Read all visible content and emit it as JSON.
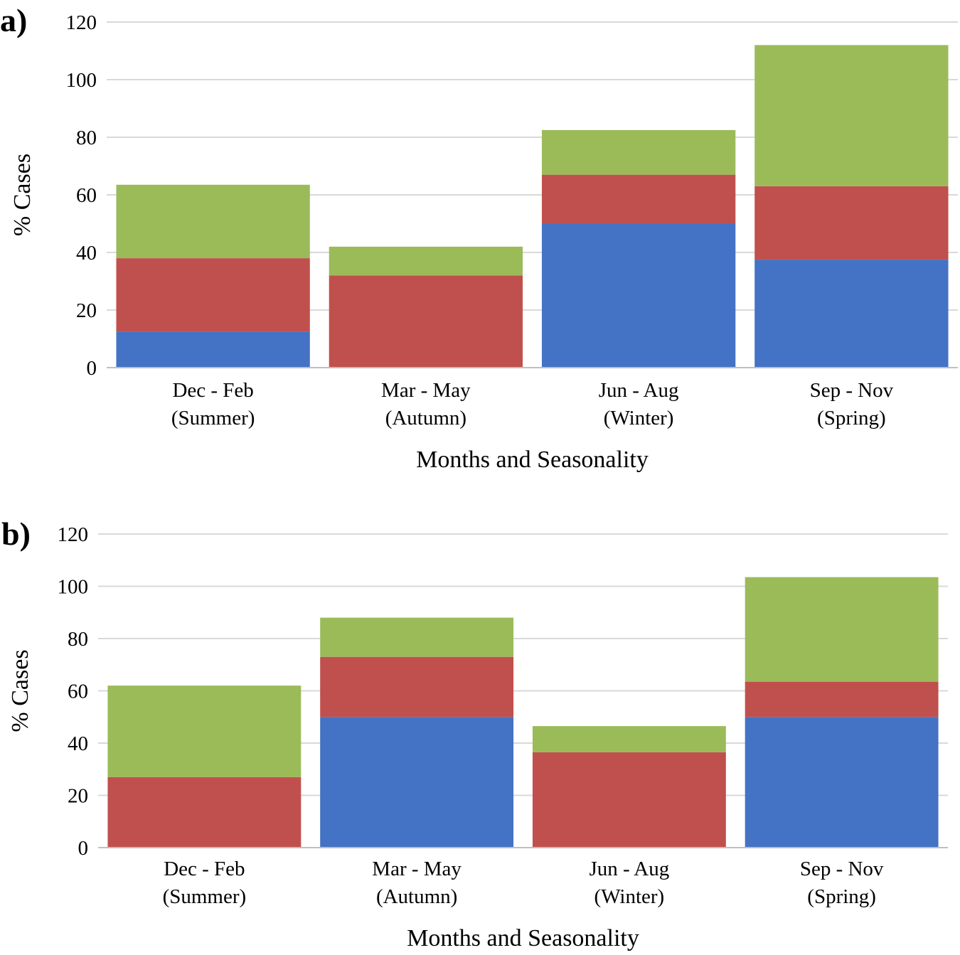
{
  "colors": {
    "blue": "#4472C4",
    "red": "#C0504D",
    "green": "#9BBB59",
    "grid": "#D9D9D9",
    "axis": "#BFBFBF"
  },
  "chart_data": [
    {
      "panel_label": "a)",
      "type": "bar",
      "stacked": true,
      "categories": [
        [
          "Dec - Feb",
          "(Summer)"
        ],
        [
          "Mar - May",
          "(Autumn)"
        ],
        [
          "Jun - Aug",
          "(Winter)"
        ],
        [
          "Sep - Nov",
          "(Spring)"
        ]
      ],
      "series": [
        {
          "color": "blue",
          "values": [
            12.5,
            0,
            50,
            37.5
          ]
        },
        {
          "color": "red",
          "values": [
            25.5,
            32,
            17,
            25.5
          ]
        },
        {
          "color": "green",
          "values": [
            25.5,
            10,
            15.5,
            49
          ]
        }
      ],
      "xlabel": "Months and Seasonality",
      "ylabel": "% Cases",
      "ylim": [
        0,
        120
      ],
      "yticks": [
        0,
        20,
        40,
        60,
        80,
        100,
        120
      ],
      "grid": true,
      "legend": "none"
    },
    {
      "panel_label": "b)",
      "type": "bar",
      "stacked": true,
      "categories": [
        [
          "Dec - Feb",
          "(Summer)"
        ],
        [
          "Mar - May",
          "(Autumn)"
        ],
        [
          "Jun - Aug",
          "(Winter)"
        ],
        [
          "Sep - Nov",
          "(Spring)"
        ]
      ],
      "series": [
        {
          "color": "blue",
          "values": [
            0,
            50,
            0,
            50
          ]
        },
        {
          "color": "red",
          "values": [
            27,
            23,
            36.5,
            13.5
          ]
        },
        {
          "color": "green",
          "values": [
            35,
            15,
            10,
            40
          ]
        }
      ],
      "xlabel": "Months and Seasonality",
      "ylabel": "% Cases",
      "ylim": [
        0,
        120
      ],
      "yticks": [
        0,
        20,
        40,
        60,
        80,
        100,
        120
      ],
      "grid": true,
      "legend": "none"
    }
  ]
}
